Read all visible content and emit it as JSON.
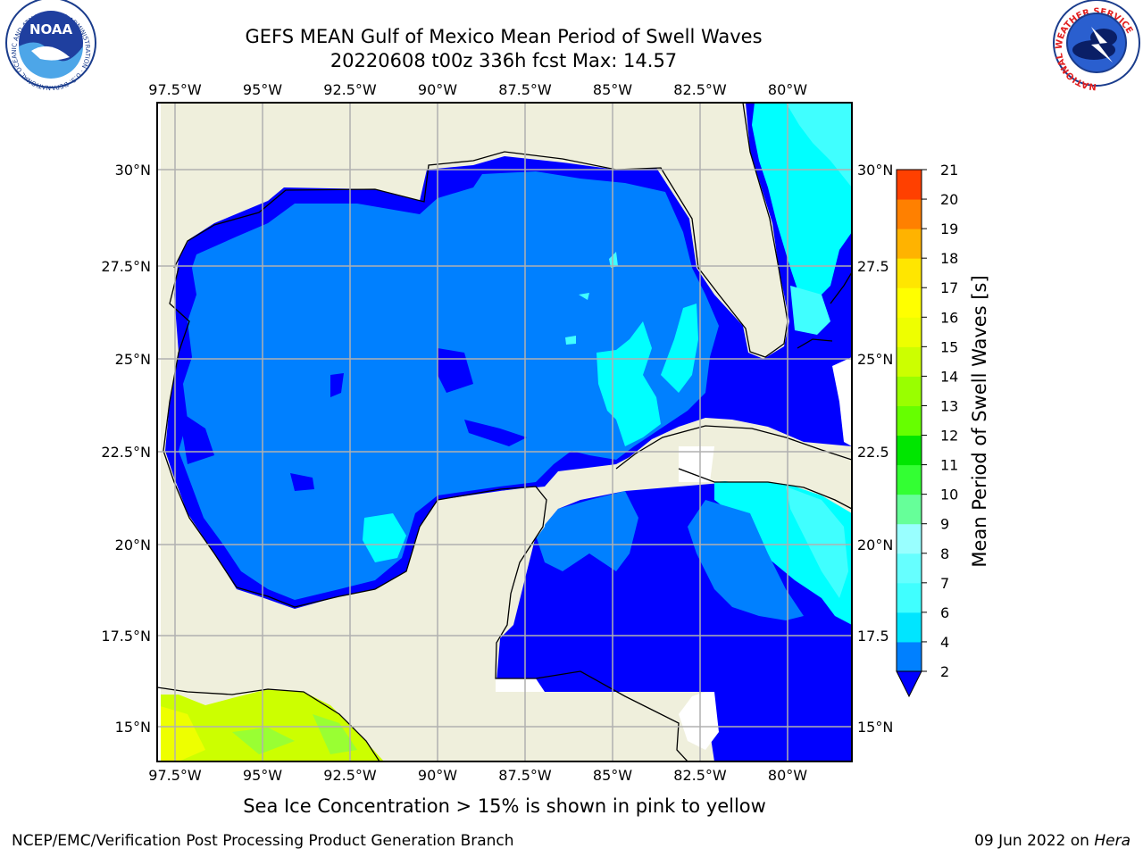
{
  "title_line1": "GEFS MEAN Gulf of Mexico Mean Period of Swell Waves",
  "title_line2": "20220608 t00z 336h fcst   Max: 14.57",
  "subtitle": "Sea Ice Concentration > 15% is shown in pink to yellow",
  "footer_left": "NCEP/EMC/Verification Post Processing Product Generation Branch",
  "footer_date": "09 Jun 2022 on",
  "footer_host": "Hera",
  "logos": {
    "noaa": {
      "text": "NOAA",
      "ring_text": "NATIONAL OCEANIC AND ATMOSPHERIC ADMINISTRATION · U.S. DEPARTMENT OF COMMERCE"
    },
    "nws": {
      "ring_text": "NATIONAL WEATHER SERVICE"
    }
  },
  "map": {
    "lon_range": [
      -98.5,
      -78.7
    ],
    "lat_range": [
      14.0,
      31.6
    ],
    "lon_ticks": [
      "97.5°W",
      "95°W",
      "92.5°W",
      "90°W",
      "87.5°W",
      "85°W",
      "82.5°W",
      "80°W"
    ],
    "lat_ticks_left": [
      "30°N",
      "27.5°N",
      "25°N",
      "22.5°N",
      "20°N",
      "17.5°N",
      "15°N"
    ],
    "lat_ticks_right": [
      "30°N",
      "27.5",
      "25°N",
      "22.5",
      "20°N",
      "17.5",
      "15°N"
    ],
    "colors": {
      "land": "#efefdc",
      "ocean_2_4": "#0080ff",
      "ocean_0_2": "#0000ff",
      "cyan_4_6": "#00ffff",
      "cyan_6_8": "#40ffff",
      "lime": "#ccff00",
      "green": "#99ff33",
      "grid": "#b0b0b0"
    }
  },
  "colorbar": {
    "label": "Mean Period of Swell Waves [s]",
    "ticks": [
      "2",
      "4",
      "6",
      "7",
      "8",
      "9",
      "10",
      "11",
      "12",
      "13",
      "14",
      "15",
      "16",
      "17",
      "18",
      "19",
      "20",
      "21"
    ],
    "colors": [
      "#0080ff",
      "#00e5ff",
      "#40ffff",
      "#66ffff",
      "#99ffff",
      "#66ff99",
      "#33ff33",
      "#00e600",
      "#66ff00",
      "#99ff00",
      "#ccff00",
      "#eeff00",
      "#ffff00",
      "#ffe600",
      "#ffb300",
      "#ff8000",
      "#ff4000",
      "#ff0000"
    ],
    "extend_color": "#0000ff"
  }
}
